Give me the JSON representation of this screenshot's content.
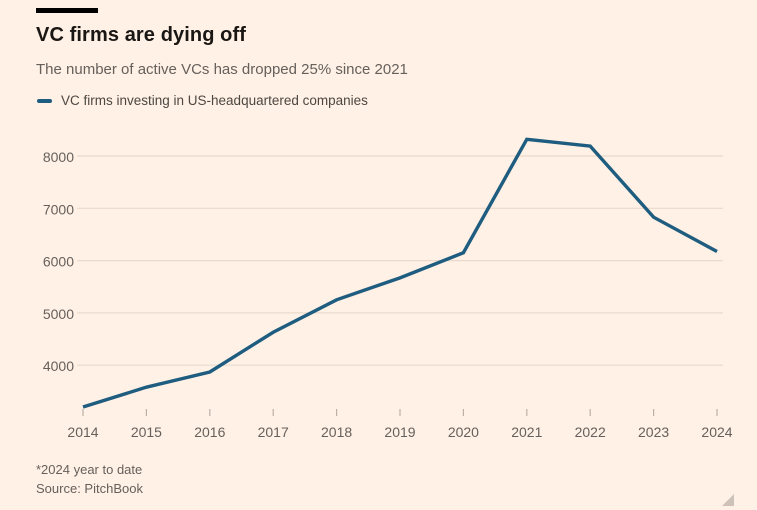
{
  "header": {
    "title": "VC firms are dying off",
    "subtitle": "The number of active VCs has dropped 25% since 2021"
  },
  "legend": {
    "label": "VC firms investing in US-headquartered companies"
  },
  "footer": {
    "note": "*2024 year to date",
    "source": "Source: PitchBook"
  },
  "colors": {
    "background": "#fff1e5",
    "accent_bar": "#000000",
    "line": "#1e5c80",
    "grid": "#e9dacc",
    "tick": "#bdb0a5",
    "axis_text": "#66605c",
    "title_text": "#1a1613",
    "legend_text": "#4d4742",
    "resize_handle": "#cdc2b7"
  },
  "chart_data": {
    "type": "line",
    "title": "VC firms are dying off",
    "subtitle": "The number of active VCs has dropped 25% since 2021",
    "x": [
      2014,
      2015,
      2016,
      2017,
      2018,
      2019,
      2020,
      2021,
      2022,
      2023,
      2024
    ],
    "series": [
      {
        "name": "VC firms investing in US-headquartered companies",
        "values": [
          3200,
          3580,
          3870,
          4630,
          5250,
          5670,
          6150,
          8320,
          8190,
          6830,
          6175
        ]
      }
    ],
    "xlabel": "",
    "ylabel": "",
    "yticks": [
      4000,
      5000,
      6000,
      7000,
      8000
    ],
    "ylim": [
      3000,
      8550
    ],
    "grid": "horizontal-only",
    "legend_position": "top-left",
    "footnote": "*2024 year to date",
    "source": "Source: PitchBook"
  }
}
